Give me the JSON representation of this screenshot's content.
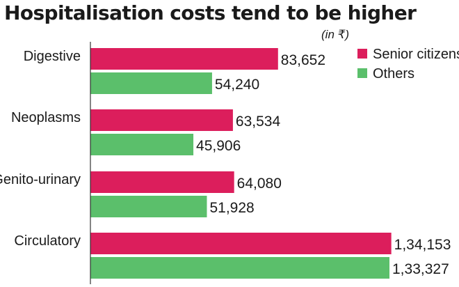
{
  "chart_data": {
    "type": "bar",
    "orientation": "horizontal",
    "title": "Hospitalisation costs tend to be higher",
    "unit_note": "(in ₹)",
    "categories": [
      "Digestive",
      "Neoplasms",
      "Genito-urinary",
      "Circulatory"
    ],
    "series": [
      {
        "name": "Senior citizens",
        "color": "#dc1e5c",
        "values": [
          83652,
          63534,
          64080,
          134153
        ],
        "labels": [
          "83,652",
          "63,534",
          "64,080",
          "1,34,153"
        ]
      },
      {
        "name": "Others",
        "color": "#5bbf6b",
        "values": [
          54240,
          45906,
          51928,
          133327
        ],
        "labels": [
          "54,240",
          "45,906",
          "51,928",
          "1,33,327"
        ]
      }
    ],
    "xlim": [
      0,
      141000
    ],
    "grid": false,
    "legend_position": "top-right"
  }
}
